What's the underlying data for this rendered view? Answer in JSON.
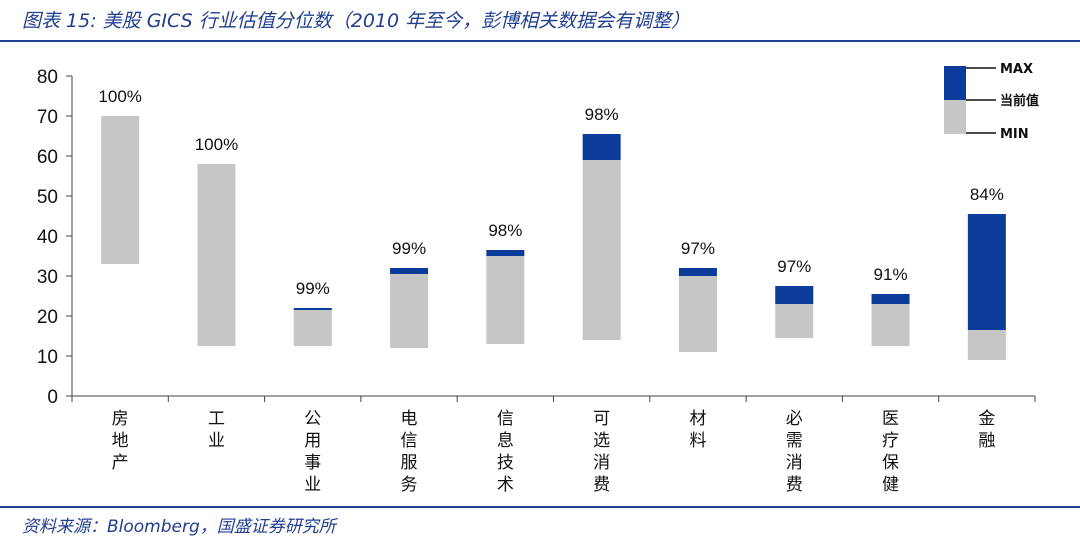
{
  "title": "图表 15:  美股 GICS 行业估值分位数（2010 年至今，彭博相关数据会有调整）",
  "source": "资料来源：Bloomberg，国盛证券研究所",
  "colors": {
    "max_segment": "#0b3c9c",
    "min_segment": "#c6c6c6",
    "title_blue": "#1f3f8f"
  },
  "chart_data": {
    "type": "bar",
    "subtype": "floating-range",
    "ylim": [
      0,
      80
    ],
    "yticks": [
      "0",
      "10",
      "20",
      "30",
      "40",
      "50",
      "60",
      "70",
      "80"
    ],
    "grid": false,
    "legend_position": "top-right",
    "legend": {
      "max": "MAX",
      "current": "当前值",
      "min": "MIN"
    },
    "categories": [
      "房地产",
      "工业",
      "公用事业",
      "电信服务",
      "信息技术",
      "可选消费",
      "材料",
      "必需消费",
      "医疗保健",
      "金融"
    ],
    "min": [
      33,
      12.5,
      12.5,
      12,
      13,
      14,
      11,
      14.5,
      12.5,
      9
    ],
    "current": [
      70,
      58,
      21.5,
      30.5,
      35,
      59,
      30,
      23,
      23,
      16.5
    ],
    "max": [
      70,
      58,
      22,
      32,
      36.5,
      65.5,
      32,
      27.5,
      25.5,
      45.5
    ],
    "percentile_labels": [
      "100%",
      "100%",
      "99%",
      "99%",
      "98%",
      "98%",
      "97%",
      "97%",
      "91%",
      "84%"
    ]
  }
}
